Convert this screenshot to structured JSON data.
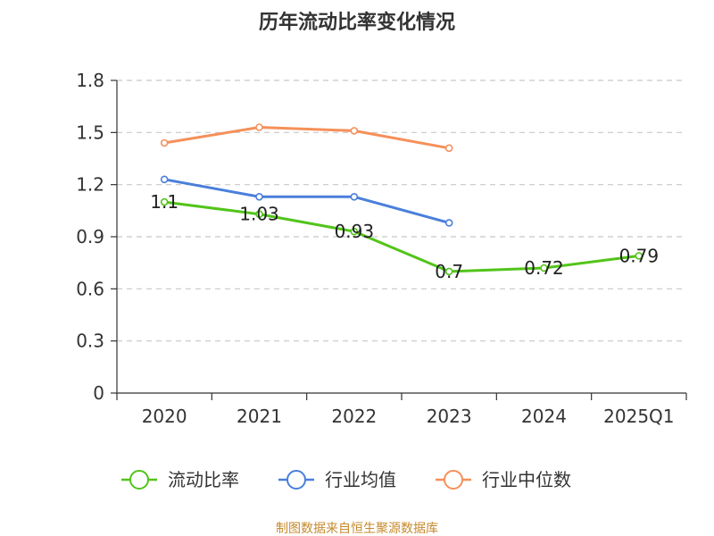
{
  "chart_data": {
    "type": "line",
    "title": "历年流动比率变化情况",
    "categories": [
      "2020",
      "2021",
      "2022",
      "2023",
      "2024",
      "2025Q1"
    ],
    "ylim": [
      0,
      1.8
    ],
    "yticks": [
      "0",
      "0.3",
      "0.6",
      "0.9",
      "1.2",
      "1.5",
      "1.8"
    ],
    "grid": true,
    "legend_position": "bottom",
    "series": [
      {
        "name": "流动比率",
        "color": "#52c41a",
        "values": [
          1.1,
          1.03,
          0.93,
          0.7,
          0.72,
          0.79
        ],
        "labels": [
          "1.1",
          "1.03",
          "0.93",
          "0.7",
          "0.72",
          "0.79"
        ],
        "show_labels": true
      },
      {
        "name": "行业均值",
        "color": "#4a7fdb",
        "values": [
          1.23,
          1.13,
          1.13,
          0.98,
          null,
          null
        ],
        "show_labels": false
      },
      {
        "name": "行业中位数",
        "color": "#f5905a",
        "values": [
          1.44,
          1.53,
          1.51,
          1.41,
          null,
          null
        ],
        "show_labels": false
      }
    ]
  },
  "source": "制图数据来自恒生聚源数据库"
}
